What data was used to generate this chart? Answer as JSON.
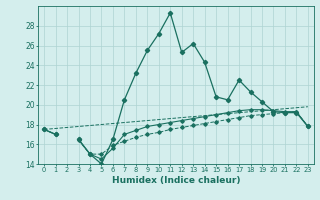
{
  "xlabel": "Humidex (Indice chaleur)",
  "x": [
    0,
    1,
    2,
    3,
    4,
    5,
    6,
    7,
    8,
    9,
    10,
    11,
    12,
    13,
    14,
    15,
    16,
    17,
    18,
    19,
    20,
    21,
    22,
    23
  ],
  "line_main": [
    17.5,
    17.0,
    null,
    16.5,
    15.0,
    14.0,
    16.5,
    20.5,
    23.2,
    25.5,
    27.2,
    29.3,
    25.3,
    26.2,
    24.3,
    20.8,
    20.5,
    22.5,
    21.3,
    20.3,
    19.3,
    19.2,
    19.2,
    17.8
  ],
  "line_mid": [
    17.5,
    17.0,
    null,
    16.5,
    15.0,
    14.5,
    15.6,
    17.0,
    17.4,
    17.8,
    18.0,
    18.2,
    18.4,
    18.6,
    18.8,
    19.0,
    19.2,
    19.4,
    19.5,
    19.5,
    19.4,
    19.3,
    19.3,
    17.8
  ],
  "line_lower": [
    17.5,
    17.0,
    null,
    16.4,
    15.0,
    15.0,
    15.9,
    16.3,
    16.7,
    17.0,
    17.2,
    17.5,
    17.7,
    17.9,
    18.1,
    18.3,
    18.5,
    18.7,
    18.9,
    19.0,
    19.1,
    19.2,
    19.3,
    17.8
  ],
  "line_diag": [
    17.5,
    17.6,
    17.7,
    17.8,
    17.9,
    18.0,
    18.1,
    18.2,
    18.3,
    18.4,
    18.5,
    18.6,
    18.7,
    18.8,
    18.9,
    19.0,
    19.1,
    19.2,
    19.3,
    19.4,
    19.5,
    19.6,
    19.7,
    19.8
  ],
  "bg_color": "#d4eeed",
  "grid_color": "#aed4d2",
  "line_color": "#1a7060",
  "ylim": [
    14,
    30
  ],
  "yticks": [
    14,
    16,
    18,
    20,
    22,
    24,
    26,
    28
  ],
  "xlim": [
    -0.5,
    23.5
  ]
}
